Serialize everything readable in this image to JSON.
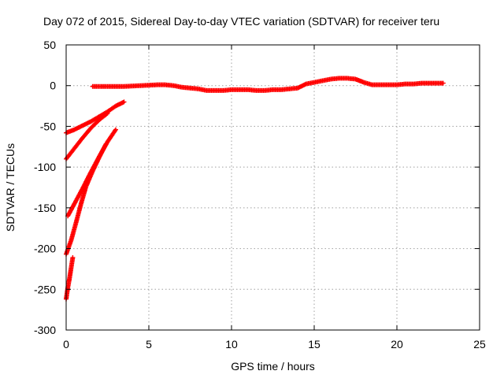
{
  "chart_data": {
    "type": "scatter",
    "title": "Day 072 of 2015, Sidereal Day-to-day VTEC variation (SDTVAR) for receiver teru",
    "xlabel": "GPS time / hours",
    "ylabel": "SDTVAR / TECUs",
    "xlim": [
      0,
      25
    ],
    "ylim": [
      -300,
      50
    ],
    "xticks": [
      0,
      5,
      10,
      15,
      20,
      25
    ],
    "yticks": [
      50,
      0,
      -50,
      -100,
      -150,
      -200,
      -250,
      -300
    ],
    "grid": true,
    "marker": "plus",
    "color": "#ff0000",
    "series": [
      {
        "x": [
          1.6,
          2.5,
          3.5,
          4.5,
          5.5,
          6.0,
          6.5,
          7.0,
          7.5,
          8.0,
          8.5,
          9.0,
          9.5,
          10.0,
          10.5,
          11.0,
          11.5,
          12.0,
          12.5,
          13.0,
          13.5,
          14.0,
          14.5,
          15.0,
          15.5,
          16.0,
          16.5,
          17.0,
          17.5,
          18.0,
          18.5,
          19.0,
          19.5,
          20.0,
          20.5,
          21.0,
          21.5,
          22.0,
          22.5,
          22.8
        ],
        "y": [
          -1,
          -1,
          -1,
          0,
          1,
          1,
          0,
          -2,
          -3,
          -4,
          -6,
          -6,
          -6,
          -5,
          -5,
          -5,
          -6,
          -6,
          -5,
          -5,
          -4,
          -3,
          2,
          4,
          6,
          8,
          9,
          9,
          8,
          4,
          1,
          1,
          1,
          1,
          2,
          2,
          3,
          3,
          3,
          3
        ]
      },
      {
        "x": [
          0.0,
          0.5,
          1.0,
          1.5,
          2.0,
          2.5,
          3.0,
          3.5
        ],
        "y": [
          -58,
          -54,
          -49,
          -44,
          -38,
          -32,
          -25,
          -20
        ]
      },
      {
        "x": [
          0.0,
          0.5,
          1.0,
          1.5,
          2.0,
          2.5
        ],
        "y": [
          -90,
          -77,
          -64,
          -52,
          -42,
          -34
        ]
      },
      {
        "x": [
          0.1,
          0.5,
          1.0,
          1.5,
          2.0,
          2.5,
          3.0
        ],
        "y": [
          -160,
          -145,
          -126,
          -106,
          -87,
          -69,
          -54
        ]
      },
      {
        "x": [
          0.0,
          0.3,
          0.6,
          0.9,
          1.2,
          1.6,
          2.0,
          2.4
        ],
        "y": [
          -207,
          -190,
          -168,
          -145,
          -124,
          -105,
          -88,
          -72
        ]
      },
      {
        "x": [
          0.0,
          0.1,
          0.2,
          0.3,
          0.4
        ],
        "y": [
          -262,
          -248,
          -237,
          -224,
          -211
        ]
      }
    ]
  }
}
